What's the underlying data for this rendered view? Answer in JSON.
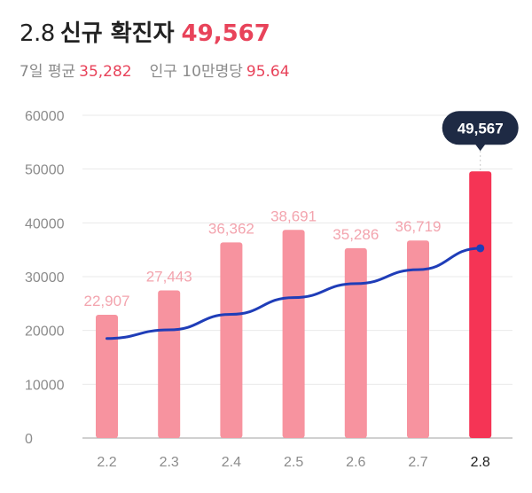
{
  "header": {
    "date": "2.8",
    "label": "신규 확진자",
    "total": "49,567",
    "avg_label": "7일 평균",
    "avg_value": "35,282",
    "per_label": "인구 10만명당",
    "per_value": "95.64"
  },
  "colors": {
    "bar": "#f7939f",
    "bar_highlight": "#f53455",
    "bar_label": "#f3a4ae",
    "line": "#1f3db8",
    "callout": "#1e2a44",
    "accent": "#e8435a"
  },
  "chart_data": {
    "type": "bar",
    "categories": [
      "2.2",
      "2.3",
      "2.4",
      "2.5",
      "2.6",
      "2.7",
      "2.8"
    ],
    "series": [
      {
        "type": "bar",
        "values": [
          22907,
          27443,
          36362,
          38691,
          35286,
          36719,
          49567
        ],
        "labels": [
          "22,907",
          "27,443",
          "36,362",
          "38,691",
          "35,286",
          "36,719",
          "49,567"
        ]
      },
      {
        "type": "line",
        "values": [
          18500,
          20100,
          23000,
          26100,
          28700,
          31300,
          35282
        ]
      }
    ],
    "yticks": [
      0,
      10000,
      20000,
      30000,
      40000,
      50000,
      60000
    ],
    "ylim": [
      0,
      60000
    ],
    "highlight_index": 6,
    "grid": true
  }
}
